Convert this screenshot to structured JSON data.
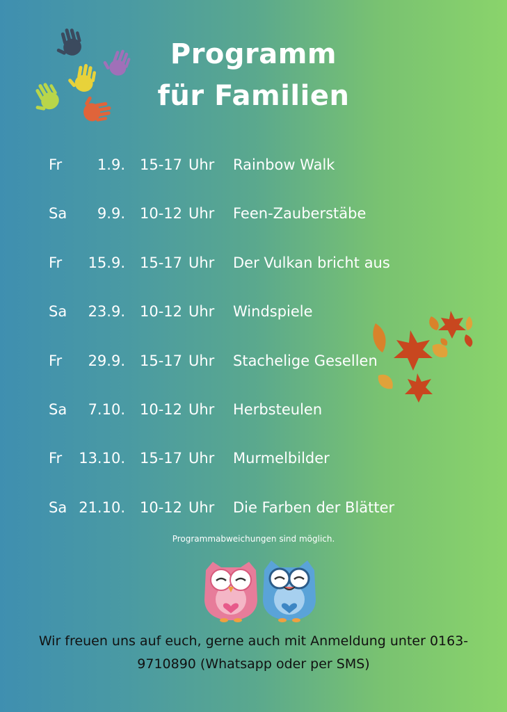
{
  "header": {
    "title_line1": "Programm",
    "title_line2": "für Familien"
  },
  "decorations": {
    "hands_icon": "colorful-handprints-icon",
    "hand_colors": [
      "#3b4a5e",
      "#a070b8",
      "#e8d23a",
      "#b9d64a",
      "#e0643a"
    ],
    "leaves_icon": "autumn-leaves-icon",
    "owls_icon": "owls-icon"
  },
  "schedule": [
    {
      "day": "Fr",
      "date": "1.9.",
      "time": "15-17",
      "unit": "Uhr",
      "title": "Rainbow Walk"
    },
    {
      "day": "Sa",
      "date": "9.9.",
      "time": "10-12",
      "unit": "Uhr",
      "title": "Feen-Zauberstäbe"
    },
    {
      "day": "Fr",
      "date": "15.9.",
      "time": "15-17",
      "unit": "Uhr",
      "title": "Der Vulkan bricht aus"
    },
    {
      "day": "Sa",
      "date": "23.9.",
      "time": "10-12",
      "unit": "Uhr",
      "title": "Windspiele"
    },
    {
      "day": "Fr",
      "date": "29.9.",
      "time": "15-17",
      "unit": "Uhr",
      "title": "Stachelige Gesellen"
    },
    {
      "day": "Sa",
      "date": "7.10.",
      "time": "10-12",
      "unit": "Uhr",
      "title": "Herbsteulen"
    },
    {
      "day": "Fr",
      "date": "13.10.",
      "time": "15-17",
      "unit": "Uhr",
      "title": "Murmelbilder"
    },
    {
      "day": "Sa",
      "date": "21.10.",
      "time": "10-12",
      "unit": "Uhr",
      "title": "Die Farben der Blätter"
    }
  ],
  "note": "Programmabweichungen sind möglich.",
  "footer": {
    "line1": "Wir freuen uns auf euch, gerne auch mit Anmeldung unter 0163-",
    "line2": "9710890  (Whatsapp oder per SMS)"
  }
}
